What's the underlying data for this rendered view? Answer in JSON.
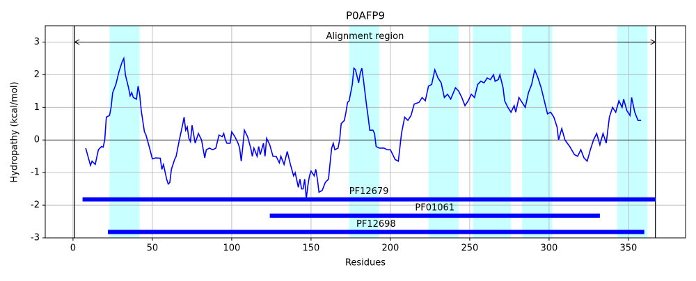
{
  "chart_data": {
    "type": "line",
    "title": "P0AFP9",
    "x_label": "Residues",
    "y_label": "Hydropathy (kcal/mol)",
    "color": "#0000ff",
    "x": [
      8,
      11,
      12,
      14,
      16,
      18,
      19,
      20,
      21,
      23,
      24,
      25,
      27,
      29,
      31,
      32,
      33,
      35,
      36,
      37,
      38,
      40,
      41,
      42,
      43,
      45,
      46,
      48,
      50,
      52,
      55,
      56,
      57,
      59,
      60,
      61,
      62,
      64,
      65,
      67,
      69,
      70,
      71,
      72,
      73,
      74,
      75,
      77,
      79,
      81,
      83,
      84,
      86,
      88,
      90,
      92,
      94,
      95,
      96,
      97,
      99,
      100,
      102,
      104,
      105,
      106,
      107,
      108,
      110,
      112,
      113,
      114,
      116,
      117,
      118,
      120,
      121,
      122,
      124,
      126,
      128,
      130,
      131,
      133,
      135,
      137,
      139,
      140,
      142,
      143,
      144,
      145,
      146,
      147,
      148,
      149,
      150,
      152,
      153,
      154,
      155,
      157,
      159,
      161,
      162,
      163,
      164,
      165,
      167,
      168,
      169,
      171,
      172,
      173,
      174,
      176,
      177,
      178,
      180,
      181,
      182,
      183,
      185,
      186,
      187,
      189,
      190,
      191,
      193,
      196,
      198,
      200,
      203,
      205,
      207,
      209,
      211,
      213,
      215,
      218,
      220,
      222,
      224,
      226,
      228,
      230,
      232,
      234,
      236,
      238,
      241,
      243,
      245,
      247,
      249,
      251,
      253,
      255,
      257,
      259,
      261,
      263,
      265,
      266,
      268,
      269,
      271,
      272,
      274,
      276,
      278,
      279,
      281,
      283,
      285,
      287,
      289,
      291,
      293,
      295,
      297,
      299,
      301,
      303,
      305,
      306,
      308,
      310,
      313,
      316,
      318,
      320,
      322,
      324,
      326,
      328,
      330,
      332,
      334,
      336,
      338,
      340,
      342,
      344,
      346,
      347,
      349,
      351,
      352,
      354,
      356,
      358
    ],
    "values": [
      -0.25,
      -0.78,
      -0.65,
      -0.75,
      -0.3,
      -0.2,
      -0.22,
      0.0,
      0.7,
      0.75,
      1.0,
      1.45,
      1.7,
      2.1,
      2.4,
      2.5,
      2.0,
      1.6,
      1.35,
      1.45,
      1.3,
      1.25,
      1.65,
      1.4,
      0.9,
      0.25,
      0.15,
      -0.2,
      -0.58,
      -0.55,
      -0.56,
      -0.9,
      -0.75,
      -1.2,
      -1.35,
      -1.3,
      -0.9,
      -0.6,
      -0.5,
      0.0,
      0.45,
      0.7,
      0.3,
      0.4,
      0.05,
      -0.05,
      0.45,
      -0.1,
      0.2,
      0.0,
      -0.55,
      -0.3,
      -0.25,
      -0.3,
      -0.25,
      0.15,
      0.1,
      0.2,
      0.0,
      -0.1,
      -0.1,
      0.25,
      0.1,
      -0.1,
      -0.25,
      -0.65,
      -0.2,
      0.3,
      0.1,
      -0.25,
      -0.5,
      -0.25,
      -0.5,
      -0.2,
      -0.45,
      -0.1,
      -0.5,
      0.05,
      -0.15,
      -0.5,
      -0.5,
      -0.7,
      -0.5,
      -0.75,
      -0.35,
      -0.75,
      -1.1,
      -1.0,
      -1.45,
      -1.2,
      -1.5,
      -1.5,
      -1.2,
      -1.8,
      -1.4,
      -1.1,
      -0.95,
      -1.1,
      -0.9,
      -1.2,
      -1.6,
      -1.55,
      -1.3,
      -1.2,
      -0.7,
      -0.25,
      -0.1,
      -0.3,
      -0.25,
      0.0,
      0.5,
      0.6,
      0.85,
      1.15,
      1.2,
      1.7,
      2.2,
      2.15,
      1.75,
      2.05,
      2.2,
      1.85,
      1.05,
      0.7,
      0.3,
      0.3,
      0.2,
      -0.2,
      -0.25,
      -0.25,
      -0.3,
      -0.3,
      -0.6,
      -0.65,
      0.2,
      0.7,
      0.6,
      0.75,
      1.1,
      1.15,
      1.3,
      1.2,
      1.65,
      1.7,
      2.15,
      1.9,
      1.75,
      1.3,
      1.4,
      1.25,
      1.6,
      1.5,
      1.3,
      1.05,
      1.2,
      1.4,
      1.3,
      1.7,
      1.8,
      1.75,
      1.9,
      1.85,
      2.0,
      1.8,
      1.85,
      2.0,
      1.6,
      1.2,
      1.0,
      0.85,
      1.05,
      0.85,
      1.3,
      1.15,
      1.0,
      1.45,
      1.7,
      2.15,
      1.9,
      1.6,
      1.2,
      0.8,
      0.85,
      0.7,
      0.4,
      0.0,
      0.35,
      0.0,
      -0.2,
      -0.45,
      -0.5,
      -0.3,
      -0.55,
      -0.65,
      -0.3,
      0.0,
      0.2,
      -0.15,
      0.2,
      -0.1,
      0.7,
      1.0,
      0.85,
      1.2,
      1.0,
      1.25,
      0.9,
      0.75,
      1.3,
      0.85,
      0.6,
      0.6
    ],
    "xlim": [
      -17.5,
      386
    ],
    "ylim": [
      -3,
      3.5
    ],
    "xticks": [
      0,
      50,
      100,
      150,
      200,
      250,
      300,
      350
    ],
    "yticks": [
      -3,
      -2,
      -1,
      0,
      1,
      2,
      3
    ],
    "grid": true,
    "zero_line": 0,
    "region_color": "#c8ffff",
    "regions": [
      {
        "start": 23,
        "end": 42
      },
      {
        "start": 174,
        "end": 193
      },
      {
        "start": 224,
        "end": 243
      },
      {
        "start": 252,
        "end": 276
      },
      {
        "start": 283,
        "end": 302
      },
      {
        "start": 343,
        "end": 362
      }
    ],
    "vlines": [
      1,
      367
    ],
    "annotation": {
      "text": "Alignment region",
      "start": 1,
      "end": 367,
      "y": 3
    },
    "domain_color": "#0000ff",
    "domains": [
      {
        "name": "PF12679",
        "start": 6,
        "end": 367,
        "y": -1.82
      },
      {
        "name": "PF01061",
        "start": 124,
        "end": 332,
        "y": -2.32
      },
      {
        "name": "PF12698",
        "start": 22,
        "end": 360,
        "y": -2.82
      }
    ]
  }
}
